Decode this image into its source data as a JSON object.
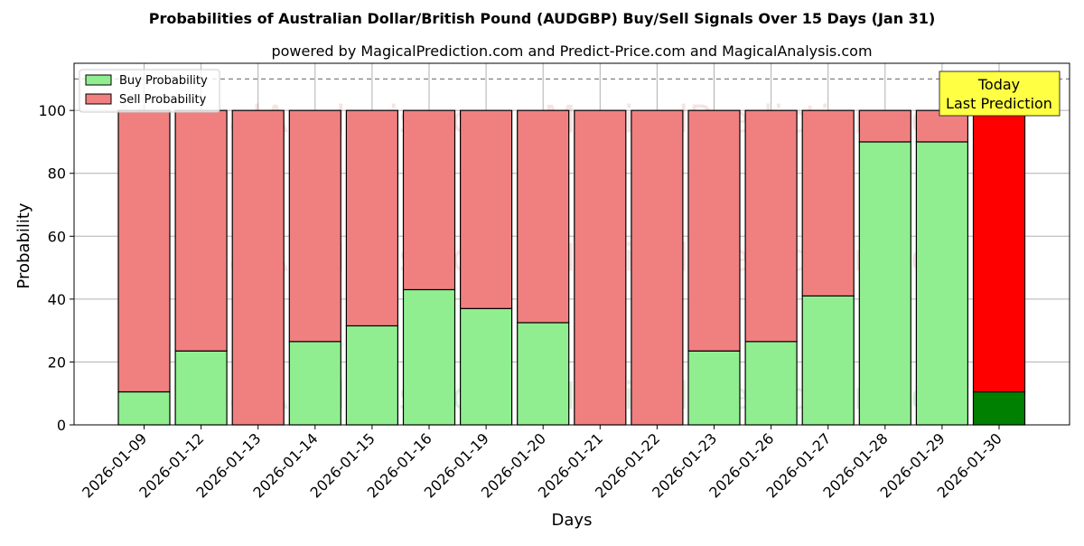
{
  "chart_data": {
    "type": "bar",
    "stacked": true,
    "title": "Probabilities of Australian Dollar/British Pound (AUDGBP) Buy/Sell Signals Over 15 Days (Jan 31)",
    "subtitle": "powered by MagicalPrediction.com and Predict-Price.com and MagicalAnalysis.com",
    "xlabel": "Days",
    "ylabel": "Probability",
    "ylim": [
      0,
      115
    ],
    "yticks": [
      0,
      20,
      40,
      60,
      80,
      100
    ],
    "grid": true,
    "legend_position": "top-left",
    "reference_line": {
      "y": 110,
      "style": "dashed"
    },
    "categories": [
      "2026-01-09",
      "2026-01-12",
      "2026-01-13",
      "2026-01-14",
      "2026-01-15",
      "2026-01-16",
      "2026-01-19",
      "2026-01-20",
      "2026-01-21",
      "2026-01-22",
      "2026-01-23",
      "2026-01-26",
      "2026-01-27",
      "2026-01-28",
      "2026-01-29",
      "2026-01-30"
    ],
    "series": [
      {
        "name": "Buy Probability",
        "color": "#90ee90",
        "values": [
          10.5,
          23.5,
          0,
          26.5,
          31.5,
          43,
          37,
          32.5,
          0,
          0,
          23.5,
          26.5,
          41,
          90,
          90,
          10.5
        ]
      },
      {
        "name": "Sell Probability",
        "color": "#f08080",
        "values": [
          89.5,
          76.5,
          100,
          73.5,
          68.5,
          57,
          63,
          67.5,
          100,
          100,
          76.5,
          73.5,
          59,
          10,
          10,
          89.5
        ]
      }
    ],
    "highlight": {
      "index": 15,
      "buy_color": "#008000",
      "sell_color": "#ff0000"
    },
    "annotation": {
      "lines": [
        "Today",
        "Last Prediction"
      ],
      "bg_color": "#ffff44"
    },
    "watermarks": [
      "MagicalAnalysis.com",
      "MagicalPrediction.com"
    ]
  }
}
